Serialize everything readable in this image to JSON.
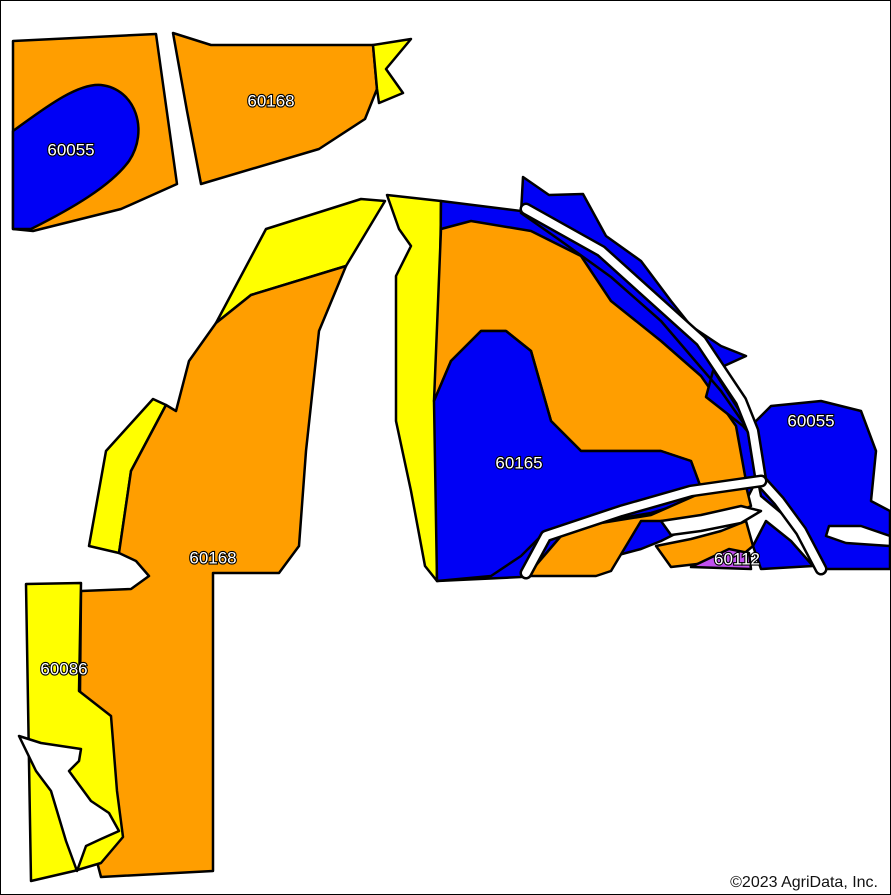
{
  "colors": {
    "orange": "#ff9e00",
    "blue": "#0000f5",
    "yellow": "#ffff00",
    "purple": "#c050f0",
    "outline": "#000000",
    "background": "#ffffff"
  },
  "labels": {
    "nw_blue": "60055",
    "nw_orange": "60168",
    "main_orange": "60168",
    "center_blue": "60165",
    "east_blue": "60055",
    "small_purple": "60112",
    "sw_yellow": "60086"
  },
  "footer": {
    "copyright": "©2023 AgriData, Inc."
  }
}
